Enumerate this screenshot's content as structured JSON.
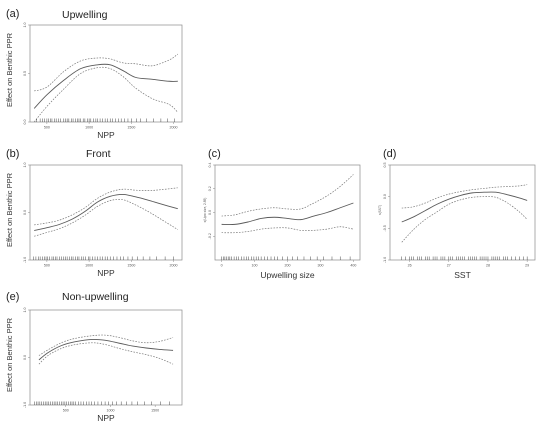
{
  "chart_data": [
    {
      "id": "a",
      "type": "line",
      "panel_label": "(a)",
      "title": "Upwelling",
      "xlabel": "NPP",
      "ylabel": "Effect on Benthic PPR",
      "xlim": [
        300,
        2100
      ],
      "ylim": [
        0.0,
        1.0
      ],
      "xticks": [
        "500",
        "1000",
        "1500",
        "2000"
      ],
      "yticks": [
        "0.0",
        "0.5",
        "1.0"
      ],
      "x": [
        350,
        500,
        700,
        900,
        1100,
        1250,
        1400,
        1550,
        1750,
        1950,
        2050
      ],
      "fit": [
        0.14,
        0.28,
        0.43,
        0.55,
        0.59,
        0.59,
        0.53,
        0.46,
        0.44,
        0.42,
        0.42
      ],
      "upper": [
        0.32,
        0.36,
        0.52,
        0.63,
        0.66,
        0.65,
        0.61,
        0.6,
        0.58,
        0.64,
        0.7
      ],
      "lower": [
        0.0,
        0.16,
        0.34,
        0.5,
        0.56,
        0.55,
        0.47,
        0.35,
        0.24,
        0.18,
        0.1
      ],
      "rug": [
        380,
        420,
        450,
        470,
        500,
        520,
        540,
        560,
        590,
        610,
        640,
        660,
        700,
        720,
        740,
        760,
        790,
        810,
        840,
        860,
        880,
        900,
        930,
        950,
        980,
        1000,
        1020,
        1050,
        1080,
        1100,
        1130,
        1160,
        1190,
        1220,
        1250,
        1280,
        1310,
        1350,
        1380,
        1420,
        1460,
        1500,
        1560,
        1610,
        1680,
        1760,
        1850,
        1930,
        2010
      ]
    },
    {
      "id": "b",
      "type": "line",
      "panel_label": "(b)",
      "title": "Front",
      "xlabel": "NPP",
      "ylabel": "Effect on Benthic PPR",
      "xlim": [
        300,
        2100
      ],
      "ylim": [
        -1.0,
        1.0
      ],
      "xticks": [
        "500",
        "1000",
        "1500",
        "2000"
      ],
      "yticks": [
        "-1.0",
        "0.0",
        "1.0"
      ],
      "x": [
        350,
        500,
        650,
        800,
        950,
        1100,
        1250,
        1400,
        1550,
        1700,
        1850,
        2050
      ],
      "fit": [
        -0.38,
        -0.32,
        -0.25,
        -0.14,
        0.02,
        0.22,
        0.34,
        0.38,
        0.33,
        0.26,
        0.18,
        0.08
      ],
      "upper": [
        -0.26,
        -0.22,
        -0.16,
        -0.05,
        0.1,
        0.3,
        0.43,
        0.49,
        0.47,
        0.46,
        0.48,
        0.52
      ],
      "lower": [
        -0.5,
        -0.42,
        -0.34,
        -0.22,
        -0.06,
        0.13,
        0.25,
        0.27,
        0.16,
        0.02,
        -0.14,
        -0.36
      ],
      "rug": [
        340,
        370,
        400,
        420,
        450,
        470,
        490,
        510,
        530,
        560,
        580,
        600,
        620,
        650,
        670,
        700,
        720,
        740,
        770,
        790,
        810,
        840,
        860,
        880,
        910,
        930,
        960,
        990,
        1010,
        1040,
        1070,
        1100,
        1130,
        1160,
        1190,
        1220,
        1250,
        1290,
        1330,
        1370,
        1410,
        1460,
        1510,
        1570,
        1640,
        1720,
        1800,
        1900,
        2000
      ]
    },
    {
      "id": "c",
      "type": "line",
      "panel_label": "(c)",
      "title": "",
      "xlabel": "Upwelling size",
      "ylabel": "s(Upw size, 2.85)",
      "xlim": [
        -20,
        420
      ],
      "ylim": [
        -0.4,
        0.4
      ],
      "xticks": [
        "0",
        "100",
        "200",
        "300",
        "400"
      ],
      "yticks": [
        "-0.2",
        "0.0",
        "0.2",
        "0.4"
      ],
      "x": [
        0,
        40,
        80,
        120,
        160,
        200,
        240,
        280,
        320,
        360,
        400
      ],
      "fit": [
        -0.1,
        -0.1,
        -0.08,
        -0.05,
        -0.04,
        -0.05,
        -0.06,
        -0.03,
        0.0,
        0.04,
        0.08
      ],
      "upper": [
        -0.03,
        -0.02,
        0.01,
        0.03,
        0.04,
        0.03,
        0.03,
        0.08,
        0.14,
        0.22,
        0.32
      ],
      "lower": [
        -0.17,
        -0.17,
        -0.16,
        -0.14,
        -0.13,
        -0.13,
        -0.15,
        -0.15,
        -0.14,
        -0.12,
        -0.14
      ],
      "rug": [
        0,
        5,
        10,
        15,
        20,
        25,
        30,
        38,
        45,
        52,
        60,
        68,
        75,
        82,
        90,
        98,
        105,
        112,
        120,
        130,
        140,
        150,
        160,
        170,
        185,
        200,
        215,
        230,
        250,
        270,
        290,
        310,
        335,
        360,
        390
      ]
    },
    {
      "id": "d",
      "type": "line",
      "panel_label": "(d)",
      "title": "",
      "xlabel": "SST",
      "ylabel": "s(SST)",
      "xlim": [
        25.5,
        29.2
      ],
      "ylim": [
        -1.0,
        0.5
      ],
      "xticks": [
        "26",
        "27",
        "28",
        "29"
      ],
      "yticks": [
        "-1.0",
        "-0.5",
        "0.0",
        "0.5"
      ],
      "x": [
        25.8,
        26.1,
        26.4,
        26.7,
        27.0,
        27.3,
        27.6,
        27.9,
        28.2,
        28.5,
        28.8,
        29.0
      ],
      "fit": [
        -0.4,
        -0.32,
        -0.22,
        -0.12,
        -0.04,
        0.02,
        0.06,
        0.07,
        0.07,
        0.03,
        -0.02,
        -0.06
      ],
      "upper": [
        -0.18,
        -0.16,
        -0.1,
        -0.02,
        0.04,
        0.08,
        0.11,
        0.13,
        0.15,
        0.16,
        0.17,
        0.19
      ],
      "lower": [
        -0.72,
        -0.52,
        -0.36,
        -0.24,
        -0.12,
        -0.05,
        -0.01,
        0.0,
        -0.01,
        -0.1,
        -0.24,
        -0.36
      ],
      "rug": [
        25.8,
        25.9,
        26.0,
        26.05,
        26.1,
        26.2,
        26.25,
        26.3,
        26.4,
        26.45,
        26.5,
        26.6,
        26.65,
        26.7,
        26.8,
        26.85,
        26.9,
        27.0,
        27.05,
        27.1,
        27.2,
        27.25,
        27.3,
        27.35,
        27.4,
        27.5,
        27.55,
        27.6,
        27.65,
        27.7,
        27.8,
        27.85,
        27.9,
        27.95,
        28.0,
        28.1,
        28.15,
        28.2,
        28.25,
        28.3,
        28.4,
        28.45,
        28.5,
        28.6,
        28.7,
        28.8,
        28.9,
        29.0
      ]
    },
    {
      "id": "e",
      "type": "line",
      "panel_label": "(e)",
      "title": "Non-upwelling",
      "xlabel": "NPP",
      "ylabel": "Effect on Benthic PPR",
      "xlim": [
        100,
        1800
      ],
      "ylim": [
        -1.0,
        1.0
      ],
      "xticks": [
        "500",
        "1000",
        "1500"
      ],
      "yticks": [
        "-1.0",
        "0.0",
        "1.0"
      ],
      "x": [
        200,
        300,
        450,
        600,
        800,
        950,
        1100,
        1250,
        1400,
        1550,
        1700
      ],
      "fit": [
        -0.05,
        0.1,
        0.25,
        0.33,
        0.38,
        0.36,
        0.3,
        0.24,
        0.2,
        0.17,
        0.15
      ],
      "upper": [
        0.04,
        0.16,
        0.31,
        0.4,
        0.46,
        0.47,
        0.42,
        0.35,
        0.31,
        0.34,
        0.42
      ],
      "lower": [
        -0.14,
        0.04,
        0.19,
        0.27,
        0.31,
        0.27,
        0.19,
        0.12,
        0.06,
        -0.02,
        -0.14
      ],
      "rug": [
        150,
        170,
        190,
        210,
        230,
        250,
        270,
        290,
        310,
        330,
        350,
        370,
        390,
        410,
        430,
        450,
        470,
        490,
        510,
        530,
        550,
        570,
        590,
        610,
        640,
        670,
        700,
        730,
        760,
        790,
        820,
        860,
        900,
        940,
        980,
        1020,
        1070,
        1120,
        1180,
        1240,
        1300,
        1380,
        1460,
        1560,
        1660
      ]
    }
  ]
}
